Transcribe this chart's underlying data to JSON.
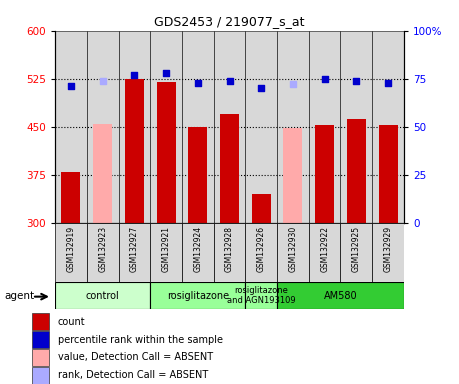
{
  "title": "GDS2453 / 219077_s_at",
  "samples": [
    "GSM132919",
    "GSM132923",
    "GSM132927",
    "GSM132921",
    "GSM132924",
    "GSM132928",
    "GSM132926",
    "GSM132930",
    "GSM132922",
    "GSM132925",
    "GSM132929"
  ],
  "bar_values": [
    380,
    null,
    525,
    520,
    450,
    470,
    345,
    null,
    453,
    462,
    452
  ],
  "bar_absent_values": [
    null,
    455,
    null,
    null,
    null,
    null,
    null,
    448,
    null,
    null,
    null
  ],
  "rank_present": [
    71,
    null,
    77,
    78,
    73,
    74,
    70,
    null,
    75,
    74,
    73
  ],
  "rank_absent": [
    null,
    74,
    null,
    null,
    null,
    null,
    null,
    72,
    null,
    null,
    null
  ],
  "absent_mask": [
    false,
    true,
    false,
    false,
    false,
    false,
    false,
    true,
    false,
    false,
    false
  ],
  "group_definitions": [
    {
      "label": "control",
      "cols": [
        0,
        1,
        2
      ],
      "color": "#ccffcc"
    },
    {
      "label": "rosiglitazone",
      "cols": [
        3,
        4,
        5
      ],
      "color": "#99ff99"
    },
    {
      "label": "rosiglitazone\nand AGN193109",
      "cols": [
        6
      ],
      "color": "#99ff99"
    },
    {
      "label": "AM580",
      "cols": [
        7,
        8,
        9,
        10
      ],
      "color": "#33cc33"
    }
  ],
  "ylim_left": [
    300,
    600
  ],
  "ylim_right": [
    0,
    100
  ],
  "yticks_left": [
    300,
    375,
    450,
    525,
    600
  ],
  "yticks_right": [
    0,
    25,
    50,
    75,
    100
  ],
  "bar_color_present": "#cc0000",
  "bar_color_absent": "#ffaaaa",
  "dot_color_present": "#0000cc",
  "dot_color_absent": "#aaaaff",
  "bar_width": 0.6,
  "agent_label": "agent",
  "legend_items": [
    {
      "color": "#cc0000",
      "label": "count"
    },
    {
      "color": "#0000cc",
      "label": "percentile rank within the sample"
    },
    {
      "color": "#ffaaaa",
      "label": "value, Detection Call = ABSENT"
    },
    {
      "color": "#aaaaff",
      "label": "rank, Detection Call = ABSENT"
    }
  ]
}
